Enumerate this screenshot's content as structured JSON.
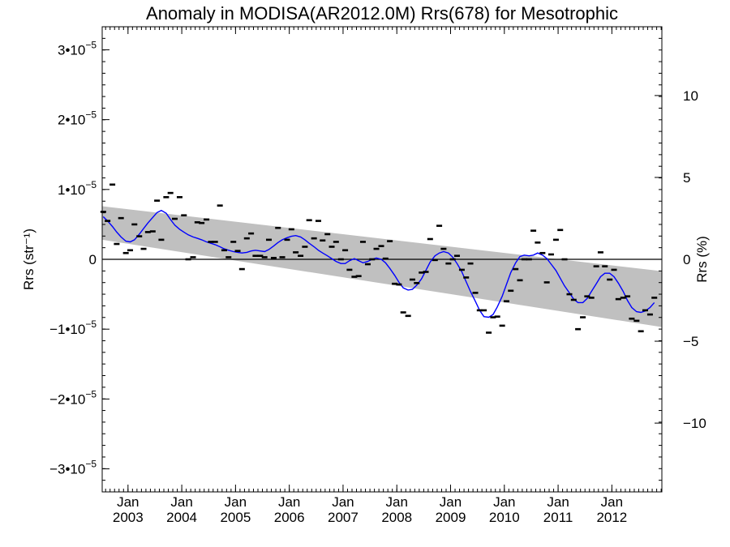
{
  "chart_data": {
    "type": "scatter",
    "title": "Anomaly in MODISA(AR2012.0M) Rrs(678) for Mesotrophic",
    "ylabel": "Rrs (str⁻¹)",
    "ylabel_right": "Rrs (%)",
    "xlim": [
      2002.52,
      2012.93
    ],
    "ylim": [
      -3.33e-05,
      3.33e-05
    ],
    "ylim_right": [
      -14.2,
      14.2
    ],
    "x_ticks": [
      {
        "x": 2003.0,
        "label_top": "Jan",
        "label_bottom": "2003"
      },
      {
        "x": 2004.0,
        "label_top": "Jan",
        "label_bottom": "2004"
      },
      {
        "x": 2005.0,
        "label_top": "Jan",
        "label_bottom": "2005"
      },
      {
        "x": 2006.0,
        "label_top": "Jan",
        "label_bottom": "2006"
      },
      {
        "x": 2007.0,
        "label_top": "Jan",
        "label_bottom": "2007"
      },
      {
        "x": 2008.0,
        "label_top": "Jan",
        "label_bottom": "2008"
      },
      {
        "x": 2009.0,
        "label_top": "Jan",
        "label_bottom": "2009"
      },
      {
        "x": 2010.0,
        "label_top": "Jan",
        "label_bottom": "2010"
      },
      {
        "x": 2011.0,
        "label_top": "Jan",
        "label_bottom": "2011"
      },
      {
        "x": 2012.0,
        "label_top": "Jan",
        "label_bottom": "2012"
      }
    ],
    "y_ticks_left": [
      {
        "value": 3e-05,
        "mant": "3•10",
        "exp": "−5"
      },
      {
        "value": 2e-05,
        "mant": "2•10",
        "exp": "−5"
      },
      {
        "value": 1e-05,
        "mant": "1•10",
        "exp": "−5"
      },
      {
        "value": 0,
        "mant": "0",
        "exp": ""
      },
      {
        "value": -1e-05,
        "mant": "−1•10",
        "exp": "−5"
      },
      {
        "value": -2e-05,
        "mant": "−2•10",
        "exp": "−5"
      },
      {
        "value": -3e-05,
        "mant": "−3•10",
        "exp": "−5"
      }
    ],
    "y_ticks_right": [
      {
        "value": 10,
        "label": "10"
      },
      {
        "value": 5,
        "label": "5"
      },
      {
        "value": 0,
        "label": "0"
      },
      {
        "value": -5,
        "label": "−5"
      },
      {
        "value": -10,
        "label": "−10"
      }
    ],
    "reference_line_y": 0,
    "trend_band": {
      "x": [
        2002.52,
        2012.93
      ],
      "upper": [
        7.6e-06,
        -1.7e-06
      ],
      "lower": [
        2.8e-06,
        -9.7e-06
      ]
    },
    "points": [
      {
        "x": 2002.54,
        "y": 6.8e-06
      },
      {
        "x": 2002.62,
        "y": 5.5e-06
      },
      {
        "x": 2002.71,
        "y": 1.07e-05
      },
      {
        "x": 2002.79,
        "y": 2.2e-06
      },
      {
        "x": 2002.87,
        "y": 5.9e-06
      },
      {
        "x": 2002.96,
        "y": 9e-07
      },
      {
        "x": 2003.04,
        "y": 1.3e-06
      },
      {
        "x": 2003.12,
        "y": 5e-06
      },
      {
        "x": 2003.21,
        "y": 3.3e-06
      },
      {
        "x": 2003.29,
        "y": 1.5e-06
      },
      {
        "x": 2003.37,
        "y": 3.9e-06
      },
      {
        "x": 2003.46,
        "y": 4e-06
      },
      {
        "x": 2003.54,
        "y": 8.4e-06
      },
      {
        "x": 2003.62,
        "y": 2.8e-06
      },
      {
        "x": 2003.71,
        "y": 8.9e-06
      },
      {
        "x": 2003.79,
        "y": 9.5e-06
      },
      {
        "x": 2003.87,
        "y": 5.8e-06
      },
      {
        "x": 2003.96,
        "y": 8.9e-06
      },
      {
        "x": 2004.04,
        "y": 6.3e-06
      },
      {
        "x": 2004.12,
        "y": 0
      },
      {
        "x": 2004.21,
        "y": 3e-07
      },
      {
        "x": 2004.29,
        "y": 5.3e-06
      },
      {
        "x": 2004.37,
        "y": 5.2e-06
      },
      {
        "x": 2004.46,
        "y": 5.7e-06
      },
      {
        "x": 2004.54,
        "y": 2.5e-06
      },
      {
        "x": 2004.62,
        "y": 2.5e-06
      },
      {
        "x": 2004.71,
        "y": 7.7e-06
      },
      {
        "x": 2004.79,
        "y": 1.3e-06
      },
      {
        "x": 2004.87,
        "y": 3e-07
      },
      {
        "x": 2004.96,
        "y": 2.5e-06
      },
      {
        "x": 2005.04,
        "y": 1.2e-06
      },
      {
        "x": 2005.12,
        "y": -1.4e-06
      },
      {
        "x": 2005.21,
        "y": 3e-06
      },
      {
        "x": 2005.29,
        "y": 3.7e-06
      },
      {
        "x": 2005.37,
        "y": 5e-07
      },
      {
        "x": 2005.46,
        "y": 5e-07
      },
      {
        "x": 2005.54,
        "y": 3e-07
      },
      {
        "x": 2005.62,
        "y": 2.8e-06
      },
      {
        "x": 2005.71,
        "y": 2e-07
      },
      {
        "x": 2005.79,
        "y": 4.5e-06
      },
      {
        "x": 2005.87,
        "y": 3e-07
      },
      {
        "x": 2005.96,
        "y": 2.8e-06
      },
      {
        "x": 2006.04,
        "y": 4.3e-06
      },
      {
        "x": 2006.12,
        "y": 1e-06
      },
      {
        "x": 2006.21,
        "y": 5e-07
      },
      {
        "x": 2006.29,
        "y": 1.8e-06
      },
      {
        "x": 2006.37,
        "y": 5.6e-06
      },
      {
        "x": 2006.46,
        "y": 3e-06
      },
      {
        "x": 2006.54,
        "y": 5.5e-06
      },
      {
        "x": 2006.62,
        "y": 2.7e-06
      },
      {
        "x": 2006.71,
        "y": 3.6e-06
      },
      {
        "x": 2006.79,
        "y": 1.8e-06
      },
      {
        "x": 2006.87,
        "y": 2.5e-06
      },
      {
        "x": 2006.96,
        "y": 0
      },
      {
        "x": 2007.04,
        "y": 1.3e-06
      },
      {
        "x": 2007.12,
        "y": -1.5e-06
      },
      {
        "x": 2007.21,
        "y": -2.5e-06
      },
      {
        "x": 2007.29,
        "y": -2.4e-06
      },
      {
        "x": 2007.37,
        "y": 2.5e-06
      },
      {
        "x": 2007.46,
        "y": -7e-07
      },
      {
        "x": 2007.54,
        "y": 0
      },
      {
        "x": 2007.62,
        "y": 1.5e-06
      },
      {
        "x": 2007.71,
        "y": 1.9e-06
      },
      {
        "x": 2007.79,
        "y": 1e-07
      },
      {
        "x": 2007.87,
        "y": 2.6e-06
      },
      {
        "x": 2007.96,
        "y": -3.5e-06
      },
      {
        "x": 2008.04,
        "y": -3.6e-06
      },
      {
        "x": 2008.12,
        "y": -7.6e-06
      },
      {
        "x": 2008.21,
        "y": -8.1e-06
      },
      {
        "x": 2008.29,
        "y": -2.9e-06
      },
      {
        "x": 2008.37,
        "y": -3.4e-06
      },
      {
        "x": 2008.46,
        "y": -1.9e-06
      },
      {
        "x": 2008.54,
        "y": -1.8e-06
      },
      {
        "x": 2008.62,
        "y": 2.9e-06
      },
      {
        "x": 2008.71,
        "y": -1e-07
      },
      {
        "x": 2008.79,
        "y": 4.8e-06
      },
      {
        "x": 2008.87,
        "y": 1.5e-06
      },
      {
        "x": 2008.96,
        "y": -6e-07
      },
      {
        "x": 2009.04,
        "y": 0
      },
      {
        "x": 2009.12,
        "y": 5e-07
      },
      {
        "x": 2009.21,
        "y": -1.5e-06
      },
      {
        "x": 2009.29,
        "y": -2.6e-06
      },
      {
        "x": 2009.37,
        "y": -6e-07
      },
      {
        "x": 2009.46,
        "y": -4.8e-06
      },
      {
        "x": 2009.54,
        "y": -7.3e-06
      },
      {
        "x": 2009.62,
        "y": -7.3e-06
      },
      {
        "x": 2009.71,
        "y": -1.05e-05
      },
      {
        "x": 2009.79,
        "y": -8.3e-06
      },
      {
        "x": 2009.87,
        "y": -8.2e-06
      },
      {
        "x": 2009.96,
        "y": -9.5e-06
      },
      {
        "x": 2010.04,
        "y": -6e-06
      },
      {
        "x": 2010.12,
        "y": -4.5e-06
      },
      {
        "x": 2010.21,
        "y": -1.4e-06
      },
      {
        "x": 2010.29,
        "y": -3e-06
      },
      {
        "x": 2010.37,
        "y": 0
      },
      {
        "x": 2010.46,
        "y": 0
      },
      {
        "x": 2010.54,
        "y": 4.1e-06
      },
      {
        "x": 2010.62,
        "y": 2.4e-06
      },
      {
        "x": 2010.71,
        "y": 9e-07
      },
      {
        "x": 2010.79,
        "y": -3.3e-06
      },
      {
        "x": 2010.87,
        "y": 7e-07
      },
      {
        "x": 2010.96,
        "y": 2.8e-06
      },
      {
        "x": 2011.04,
        "y": 4.2e-06
      },
      {
        "x": 2011.12,
        "y": 0
      },
      {
        "x": 2011.21,
        "y": -5e-06
      },
      {
        "x": 2011.29,
        "y": -5.8e-06
      },
      {
        "x": 2011.37,
        "y": -1e-05
      },
      {
        "x": 2011.46,
        "y": -8.3e-06
      },
      {
        "x": 2011.54,
        "y": -5.3e-06
      },
      {
        "x": 2011.62,
        "y": -5.5e-06
      },
      {
        "x": 2011.71,
        "y": -1e-06
      },
      {
        "x": 2011.79,
        "y": 1e-06
      },
      {
        "x": 2011.87,
        "y": -1e-06
      },
      {
        "x": 2011.96,
        "y": -2.9e-06
      },
      {
        "x": 2012.04,
        "y": -1.5e-06
      },
      {
        "x": 2012.12,
        "y": -5.7e-06
      },
      {
        "x": 2012.21,
        "y": -5.5e-06
      },
      {
        "x": 2012.29,
        "y": -5.3e-06
      },
      {
        "x": 2012.37,
        "y": -8.5e-06
      },
      {
        "x": 2012.46,
        "y": -8.8e-06
      },
      {
        "x": 2012.54,
        "y": -1.03e-05
      },
      {
        "x": 2012.62,
        "y": -7.3e-06
      },
      {
        "x": 2012.71,
        "y": -7.9e-06
      },
      {
        "x": 2012.79,
        "y": -5.5e-06
      }
    ],
    "smooth_line": {
      "color": "#0000ff",
      "x": [
        2002.54,
        2002.62,
        2002.71,
        2002.79,
        2002.87,
        2002.96,
        2003.04,
        2003.12,
        2003.21,
        2003.29,
        2003.37,
        2003.46,
        2003.54,
        2003.62,
        2003.71,
        2003.79,
        2003.87,
        2003.96,
        2004.04,
        2004.12,
        2004.21,
        2004.29,
        2004.37,
        2004.46,
        2004.54,
        2004.62,
        2004.71,
        2004.79,
        2004.87,
        2004.96,
        2005.04,
        2005.12,
        2005.21,
        2005.29,
        2005.37,
        2005.46,
        2005.54,
        2005.62,
        2005.71,
        2005.79,
        2005.87,
        2005.96,
        2006.04,
        2006.12,
        2006.21,
        2006.29,
        2006.37,
        2006.46,
        2006.54,
        2006.62,
        2006.71,
        2006.79,
        2006.87,
        2006.96,
        2007.04,
        2007.12,
        2007.21,
        2007.29,
        2007.37,
        2007.46,
        2007.54,
        2007.62,
        2007.71,
        2007.79,
        2007.87,
        2007.96,
        2008.04,
        2008.12,
        2008.21,
        2008.29,
        2008.37,
        2008.46,
        2008.54,
        2008.62,
        2008.71,
        2008.79,
        2008.87,
        2008.96,
        2009.04,
        2009.12,
        2009.21,
        2009.29,
        2009.37,
        2009.46,
        2009.54,
        2009.62,
        2009.71,
        2009.79,
        2009.87,
        2009.96,
        2010.04,
        2010.12,
        2010.21,
        2010.29,
        2010.37,
        2010.46,
        2010.54,
        2010.62,
        2010.71,
        2010.79,
        2010.87,
        2010.96,
        2011.04,
        2011.12,
        2011.21,
        2011.29,
        2011.37,
        2011.46,
        2011.54,
        2011.62,
        2011.71,
        2011.79,
        2011.87,
        2011.96,
        2012.04,
        2012.12,
        2012.21,
        2012.29,
        2012.37,
        2012.46,
        2012.54,
        2012.62,
        2012.71,
        2012.79
      ],
      "y": [
        6.1e-06,
        5.5e-06,
        4.7e-06,
        3.9e-06,
        3.2e-06,
        2.6e-06,
        2.5e-06,
        2.8e-06,
        3.6e-06,
        4.4e-06,
        5.2e-06,
        6e-06,
        6.7e-06,
        7e-06,
        6.6e-06,
        5.7e-06,
        4.9e-06,
        4.3e-06,
        3.9e-06,
        3.5e-06,
        3.2e-06,
        3e-06,
        2.8e-06,
        2.5e-06,
        2.3e-06,
        2.1e-06,
        1.8e-06,
        1.5e-06,
        1.3e-06,
        1.1e-06,
        1e-06,
        9e-07,
        1e-06,
        1.2e-06,
        1.3e-06,
        1.2e-06,
        1.1e-06,
        1.4e-06,
        1.9e-06,
        2.4e-06,
        2.8e-06,
        3.1e-06,
        3.3e-06,
        3.4e-06,
        3.2e-06,
        2.8e-06,
        2.3e-06,
        1.8e-06,
        1.3e-06,
        9e-07,
        5e-07,
        1e-07,
        -3e-07,
        -6e-07,
        -6e-07,
        -2e-07,
        1e-07,
        -2e-07,
        -5e-07,
        -3e-07,
        0,
        2e-07,
        0,
        -5e-07,
        -1.3e-06,
        -2.3e-06,
        -3.3e-06,
        -4.1e-06,
        -4.4e-06,
        -4.3e-06,
        -3.7e-06,
        -2.8e-06,
        -1.6e-06,
        -4e-07,
        5e-07,
        9e-07,
        1.1e-06,
        9e-07,
        3e-07,
        -6e-07,
        -1.8e-06,
        -3.2e-06,
        -4.6e-06,
        -6e-06,
        -7.3e-06,
        -8.2e-06,
        -8.3e-06,
        -7.9e-06,
        -6.8e-06,
        -5.3e-06,
        -3.6e-06,
        -1.9e-06,
        -5e-07,
        4e-07,
        6e-07,
        5e-07,
        6e-07,
        9e-07,
        6e-07,
        1e-07,
        -7e-07,
        -1.6e-06,
        -2.7e-06,
        -3.8e-06,
        -4.8e-06,
        -5.7e-06,
        -6.2e-06,
        -6.2e-06,
        -5.6e-06,
        -4.6e-06,
        -3.5e-06,
        -2.5e-06,
        -2e-06,
        -2e-06,
        -2.5e-06,
        -3.4e-06,
        -4.6e-06,
        -5.9e-06,
        -6.9e-06,
        -7.5e-06,
        -7.6e-06,
        -7.4e-06,
        -6.9e-06,
        -6.2e-06
      ]
    }
  }
}
